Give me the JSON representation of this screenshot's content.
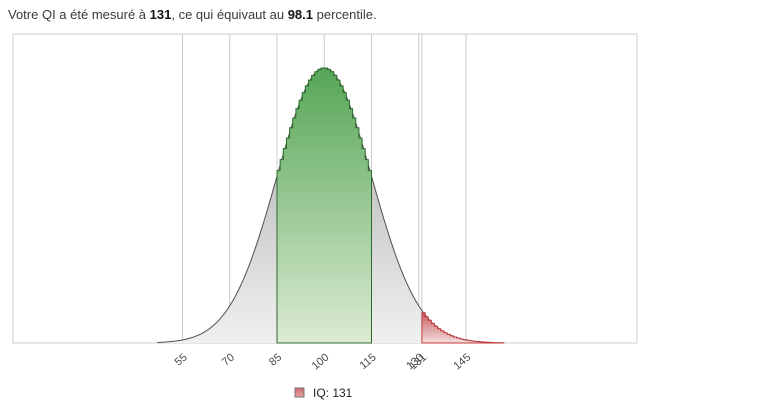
{
  "title": {
    "prefix": "Votre QI a été mesuré à ",
    "iq_value": "131",
    "middle": ", ce qui équivaut au ",
    "percentile_value": "98.1",
    "suffix": " percentile."
  },
  "chart_data": {
    "type": "area",
    "subtype": "normal-distribution-histogram",
    "title": "",
    "xlabel": "",
    "ylabel": "",
    "distribution": {
      "shape": "normal",
      "mean": 100,
      "sd": 15
    },
    "x_axis_range": [
      0,
      200
    ],
    "x_ticks": [
      55,
      70,
      85,
      100,
      115,
      130,
      145
    ],
    "highlight_band_iq": [
      85,
      115
    ],
    "marked_iq": 131,
    "marked_percentile": 98.1,
    "red_tail_visible_end_iq": 157,
    "gray_curve_visible_range_iq": [
      47,
      153
    ],
    "legend_label": "IQ: 131",
    "grid": "vertical-only",
    "legend_position": "bottom-center",
    "colors": {
      "plot_border": "#cccccc",
      "grid": "#cccccc",
      "axis_label": "#4a4a4a",
      "curve_stroke": "#4f4f4f",
      "gray_fill_top": "#a8a8a8",
      "gray_fill_bottom": "#f0f0f0",
      "green_stroke": "#2c6b2c",
      "green_fill_top": "#56a656",
      "green_fill_bottom": "#dcebd3",
      "red_stroke": "#c0393d",
      "red_fill_top": "#c5555a",
      "red_fill_bottom": "#f3dedd",
      "legend_swatch_top": "#cb6468",
      "legend_swatch_bottom": "#e8a4a6",
      "legend_swatch_border": "#767676"
    }
  }
}
